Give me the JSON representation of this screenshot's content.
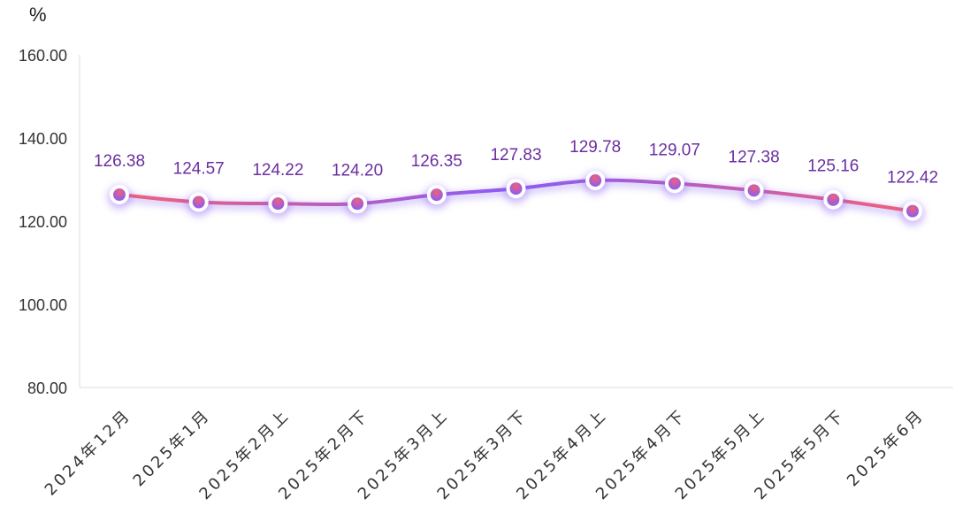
{
  "chart_data": {
    "type": "line",
    "title": "",
    "ylabel": "%",
    "xlabel": "",
    "ylim": [
      80,
      160
    ],
    "yticks": [
      "80.00",
      "100.00",
      "120.00",
      "140.00",
      "160.00"
    ],
    "categories": [
      "2024年12月",
      "2025年1月",
      "2025年2月上",
      "2025年2月下",
      "2025年3月上",
      "2025年3月下",
      "2025年4月上",
      "2025年4月下",
      "2025年5月上",
      "2025年5月下",
      "2025年6月"
    ],
    "values": [
      126.38,
      124.57,
      124.22,
      124.2,
      126.35,
      127.83,
      129.78,
      129.07,
      127.38,
      125.16,
      122.42
    ],
    "data_labels": [
      "126.38",
      "124.57",
      "124.22",
      "124.20",
      "126.35",
      "127.83",
      "129.78",
      "129.07",
      "127.38",
      "125.16",
      "122.42"
    ],
    "grid": false,
    "colors": {
      "line_gradient": [
        "#f0607a",
        "#8a5cf5",
        "#f0607a"
      ],
      "label_color": "#6a2fa0",
      "axis_color": "#dddddd"
    }
  }
}
